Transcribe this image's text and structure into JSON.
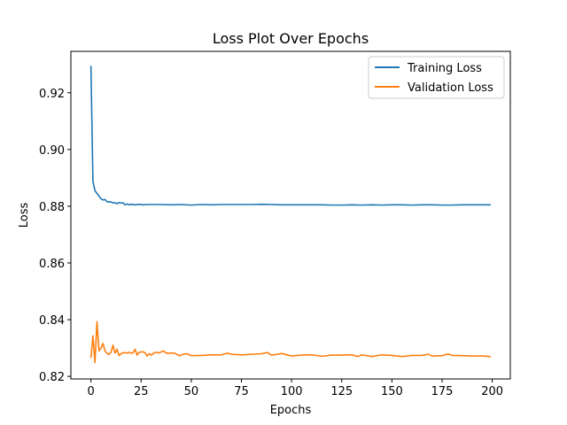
{
  "chart_data": {
    "type": "line",
    "title": "Loss Plot Over Epochs",
    "xlabel": "Epochs",
    "ylabel": "Loss",
    "xlim": [
      -10,
      209
    ],
    "ylim": [
      0.8191,
      0.9346
    ],
    "xticks": [
      0,
      25,
      50,
      75,
      100,
      125,
      150,
      175,
      200
    ],
    "xtick_labels": [
      "0",
      "25",
      "50",
      "75",
      "100",
      "125",
      "150",
      "175",
      "200"
    ],
    "yticks": [
      0.82,
      0.84,
      0.86,
      0.88,
      0.9,
      0.92
    ],
    "ytick_labels": [
      "0.82",
      "0.84",
      "0.86",
      "0.88",
      "0.90",
      "0.92"
    ],
    "grid": false,
    "legend_position": "top-right",
    "series": [
      {
        "name": "Training Loss",
        "color": "#1f77b4",
        "x": [
          0,
          1,
          2,
          3,
          4,
          5,
          6,
          7,
          8,
          9,
          10,
          11,
          12,
          13,
          14,
          15,
          16,
          17,
          18,
          19,
          20,
          22,
          24,
          26,
          28,
          30,
          35,
          40,
          45,
          50,
          55,
          60,
          65,
          70,
          75,
          80,
          85,
          90,
          95,
          100,
          105,
          110,
          115,
          120,
          125,
          130,
          135,
          140,
          145,
          150,
          155,
          160,
          165,
          170,
          175,
          180,
          185,
          190,
          195,
          199
        ],
        "values": [
          0.9293,
          0.8887,
          0.8855,
          0.8845,
          0.8836,
          0.8826,
          0.8822,
          0.8824,
          0.8816,
          0.8815,
          0.8815,
          0.8812,
          0.8812,
          0.8809,
          0.8813,
          0.8811,
          0.8812,
          0.8805,
          0.8808,
          0.8805,
          0.8807,
          0.8805,
          0.8807,
          0.8805,
          0.8806,
          0.8806,
          0.8806,
          0.8805,
          0.8806,
          0.8804,
          0.8806,
          0.8805,
          0.8806,
          0.8806,
          0.8806,
          0.8806,
          0.8807,
          0.8806,
          0.8805,
          0.8805,
          0.8805,
          0.8805,
          0.8805,
          0.8804,
          0.8804,
          0.8805,
          0.8804,
          0.8805,
          0.8804,
          0.8805,
          0.8805,
          0.8804,
          0.8805,
          0.8805,
          0.8804,
          0.8804,
          0.8805,
          0.8805,
          0.8805,
          0.8805
        ]
      },
      {
        "name": "Validation Loss",
        "color": "#ff7f0e",
        "x": [
          0,
          1,
          2,
          3,
          4,
          5,
          6,
          7,
          8,
          9,
          10,
          11,
          12,
          13,
          14,
          15,
          16,
          17,
          18,
          19,
          20,
          21,
          22,
          23,
          24,
          25,
          26,
          27,
          28,
          29,
          30,
          32,
          34,
          36,
          38,
          40,
          42,
          44,
          46,
          48,
          50,
          55,
          60,
          65,
          68,
          70,
          75,
          80,
          85,
          88,
          90,
          93,
          95,
          100,
          105,
          110,
          115,
          120,
          125,
          130,
          133,
          135,
          140,
          145,
          150,
          155,
          160,
          165,
          168,
          170,
          175,
          178,
          180,
          185,
          190,
          195,
          199
        ],
        "values": [
          0.8267,
          0.8343,
          0.8249,
          0.8393,
          0.829,
          0.83,
          0.8316,
          0.829,
          0.8282,
          0.8277,
          0.8285,
          0.831,
          0.8282,
          0.8296,
          0.8273,
          0.828,
          0.8283,
          0.8284,
          0.8282,
          0.8285,
          0.8282,
          0.8283,
          0.8296,
          0.8275,
          0.8285,
          0.8286,
          0.8287,
          0.8283,
          0.8272,
          0.828,
          0.8275,
          0.8285,
          0.8283,
          0.829,
          0.8281,
          0.8283,
          0.8281,
          0.8273,
          0.8278,
          0.828,
          0.8273,
          0.8274,
          0.8276,
          0.8276,
          0.8282,
          0.8278,
          0.8276,
          0.8278,
          0.828,
          0.8284,
          0.8275,
          0.8278,
          0.8281,
          0.8272,
          0.8275,
          0.8276,
          0.8271,
          0.8275,
          0.8275,
          0.8276,
          0.827,
          0.8276,
          0.827,
          0.8276,
          0.8274,
          0.827,
          0.8274,
          0.8274,
          0.8278,
          0.8272,
          0.8273,
          0.8279,
          0.8274,
          0.8273,
          0.8272,
          0.8272,
          0.827
        ]
      }
    ]
  }
}
